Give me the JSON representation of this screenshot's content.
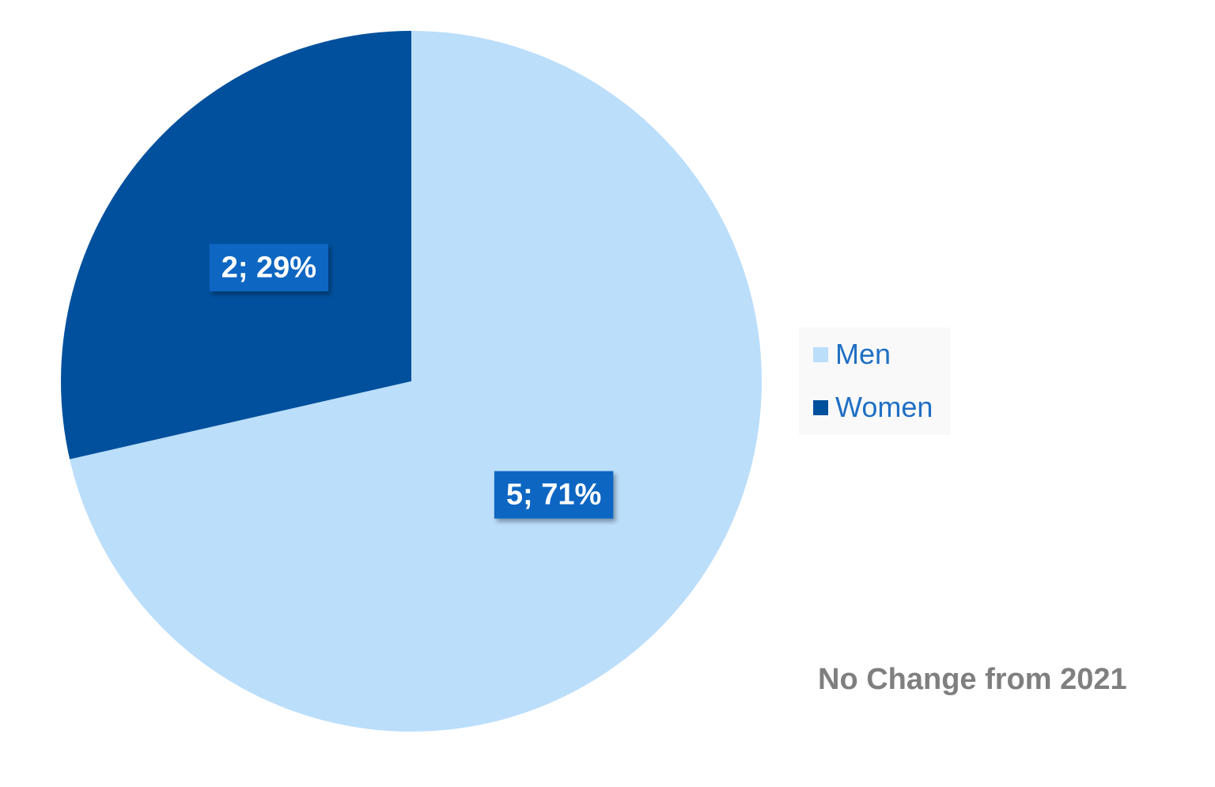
{
  "chart_data": {
    "type": "pie",
    "categories": [
      "Men",
      "Women"
    ],
    "values": [
      5,
      2
    ],
    "percent_labels": [
      "71%",
      "29%"
    ],
    "data_labels": [
      "5; 71%",
      "2; 29%"
    ],
    "colors": {
      "Men": "#bbdefb",
      "Women": "#00509d",
      "data_label_bg": "#0a66c2",
      "legend_text": "#1f6fc4",
      "note_text": "#7f7f7f"
    },
    "legend": {
      "position": "right",
      "entries": [
        "Men",
        "Women"
      ]
    },
    "start_angle_deg": 0,
    "direction": "clockwise",
    "annotation": "No Change from 2021"
  }
}
